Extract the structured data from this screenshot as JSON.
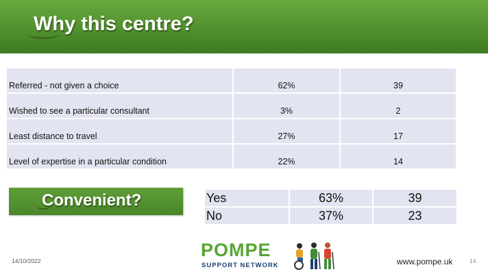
{
  "header": {
    "title": "Why this centre?"
  },
  "reasons_table": {
    "rows": [
      {
        "label": "Referred - not given a choice",
        "percent": "62%",
        "count": "39"
      },
      {
        "label": "Wished to see a particular consultant",
        "percent": "3%",
        "count": "2"
      },
      {
        "label": "Least distance to travel",
        "percent": "27%",
        "count": "17"
      },
      {
        "label": "Level of expertise in a particular condition",
        "percent": "22%",
        "count": "14"
      }
    ]
  },
  "convenient": {
    "label": "Convenient?",
    "rows": [
      {
        "label": "Yes",
        "percent": "63%",
        "count": "39"
      },
      {
        "label": "No",
        "percent": "37%",
        "count": "23"
      }
    ]
  },
  "footer": {
    "date": "14/10/2022",
    "logo_word": "POMPE",
    "logo_sub": "SUPPORT NETWORK",
    "url": "www.pompe.uk",
    "page_number": "14"
  },
  "colors": {
    "banner_green": "#4f8e2c",
    "table_fill": "#e3e4f1",
    "logo_green": "#55a631",
    "logo_navy": "#1c3d6e"
  }
}
